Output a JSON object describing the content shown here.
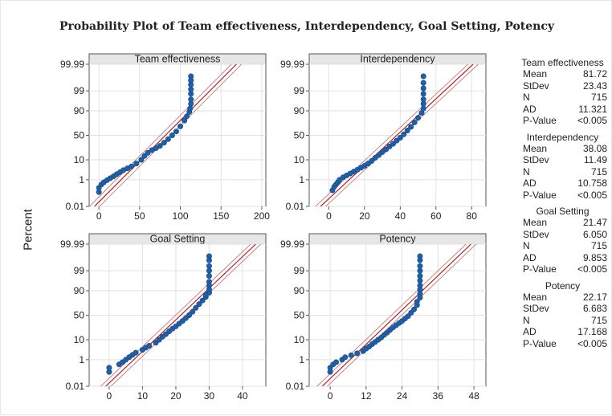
{
  "title": "Probability Plot of Team effectiveness, Interdependency, Goal Setting, Potency",
  "y_axis_label": "Percent",
  "colors": {
    "points": "#1f5fa8",
    "fit_line": "#b22222",
    "ci_band": "#c87a7a",
    "grid": "#e2e2e2",
    "panel_header": "#e6e6e6"
  },
  "chart_data": [
    {
      "type": "scatter",
      "title": "Team effectiveness",
      "y_scale": "normal-probability",
      "y_ticks": [
        "99.99",
        "99",
        "90",
        "50",
        "10",
        "1",
        "0.01"
      ],
      "y_tick_values": [
        99.99,
        99,
        90,
        50,
        10,
        1,
        0.01
      ],
      "x_ticks": [
        "0",
        "50",
        "100",
        "150",
        "200"
      ],
      "x_tick_values": [
        0,
        50,
        100,
        150,
        200
      ],
      "xlim": [
        -12,
        205
      ],
      "fit": {
        "mean": 81.72,
        "sd": 23.43
      },
      "points": [
        [
          0,
          0.15
        ],
        [
          0,
          0.3
        ],
        [
          3,
          0.5
        ],
        [
          6,
          0.7
        ],
        [
          10,
          0.95
        ],
        [
          14,
          1.25
        ],
        [
          18,
          1.6
        ],
        [
          22,
          2.1
        ],
        [
          26,
          2.7
        ],
        [
          30,
          3.4
        ],
        [
          35,
          4.2
        ],
        [
          40,
          5.2
        ],
        [
          46,
          7
        ],
        [
          52,
          10
        ],
        [
          56,
          14
        ],
        [
          60,
          18
        ],
        [
          65,
          22
        ],
        [
          70,
          25
        ],
        [
          75,
          29
        ],
        [
          80,
          35
        ],
        [
          85,
          42
        ],
        [
          90,
          50
        ],
        [
          95,
          58
        ],
        [
          100,
          68
        ],
        [
          105,
          78
        ],
        [
          108,
          84
        ],
        [
          111,
          89
        ],
        [
          112,
          92
        ],
        [
          113,
          95
        ],
        [
          113,
          97
        ],
        [
          113,
          98.5
        ],
        [
          113,
          99.2
        ],
        [
          113,
          99.6
        ],
        [
          113,
          99.8
        ],
        [
          113,
          99.9
        ]
      ],
      "stats": {
        "title": "Team effectiveness",
        "Mean": "81.72",
        "StDev": "23.43",
        "N": "715",
        "AD": "11.321",
        "P-Value": "<0.005"
      }
    },
    {
      "type": "scatter",
      "title": "Interdependency",
      "y_scale": "normal-probability",
      "y_ticks": [
        "99.99",
        "99",
        "90",
        "50",
        "10",
        "1",
        "0.01"
      ],
      "y_tick_values": [
        99.99,
        99,
        90,
        50,
        10,
        1,
        0.01
      ],
      "x_ticks": [
        "0",
        "20",
        "40",
        "60",
        "80"
      ],
      "x_tick_values": [
        0,
        20,
        40,
        60,
        80
      ],
      "xlim": [
        -11,
        88
      ],
      "fit": {
        "mean": 38.08,
        "sd": 11.49
      },
      "points": [
        [
          2,
          0.2
        ],
        [
          3,
          0.35
        ],
        [
          4,
          0.5
        ],
        [
          5,
          0.7
        ],
        [
          6,
          1
        ],
        [
          8,
          1.4
        ],
        [
          10,
          1.8
        ],
        [
          12,
          2.3
        ],
        [
          14,
          2.9
        ],
        [
          16,
          3.6
        ],
        [
          18,
          4.5
        ],
        [
          20,
          5.5
        ],
        [
          22,
          7
        ],
        [
          24,
          9
        ],
        [
          26,
          12
        ],
        [
          28,
          15
        ],
        [
          30,
          19
        ],
        [
          32,
          23
        ],
        [
          34,
          28
        ],
        [
          36,
          33
        ],
        [
          38,
          39
        ],
        [
          40,
          45
        ],
        [
          42,
          52
        ],
        [
          44,
          60
        ],
        [
          46,
          67
        ],
        [
          48,
          75
        ],
        [
          50,
          82
        ],
        [
          52,
          88
        ],
        [
          53,
          92
        ],
        [
          53,
          95
        ],
        [
          53,
          97
        ],
        [
          53,
          98.5
        ],
        [
          53,
          99.3
        ],
        [
          53,
          99.7
        ],
        [
          53,
          99.9
        ]
      ],
      "stats": {
        "title": "Interdependency",
        "Mean": "38.08",
        "StDev": "11.49",
        "N": "715",
        "AD": "10.758",
        "P-Value": "<0.005"
      }
    },
    {
      "type": "scatter",
      "title": "Goal Setting",
      "y_scale": "normal-probability",
      "y_ticks": [
        "99.99",
        "99",
        "90",
        "50",
        "10",
        "1",
        "0.01"
      ],
      "y_tick_values": [
        99.99,
        99,
        90,
        50,
        10,
        1,
        0.01
      ],
      "x_ticks": [
        "0",
        "10",
        "20",
        "30",
        "40"
      ],
      "x_tick_values": [
        0,
        10,
        20,
        30,
        40
      ],
      "xlim": [
        -6,
        47
      ],
      "fit": {
        "mean": 21.47,
        "sd": 6.05
      },
      "points": [
        [
          0,
          0.15
        ],
        [
          0,
          0.3
        ],
        [
          3,
          0.5
        ],
        [
          4,
          0.7
        ],
        [
          5,
          1
        ],
        [
          6,
          1.4
        ],
        [
          7,
          1.9
        ],
        [
          8,
          2.5
        ],
        [
          10,
          3.5
        ],
        [
          11,
          4.5
        ],
        [
          12,
          5.5
        ],
        [
          14,
          7.5
        ],
        [
          15,
          10
        ],
        [
          16,
          13
        ],
        [
          17,
          16
        ],
        [
          18,
          20
        ],
        [
          19,
          24
        ],
        [
          20,
          28
        ],
        [
          21,
          33
        ],
        [
          22,
          38
        ],
        [
          23,
          44
        ],
        [
          24,
          50
        ],
        [
          25,
          57
        ],
        [
          26,
          65
        ],
        [
          27,
          72
        ],
        [
          28,
          78
        ],
        [
          29,
          83
        ],
        [
          29,
          86
        ],
        [
          30,
          88
        ],
        [
          30,
          91
        ],
        [
          30,
          94
        ],
        [
          30,
          96
        ],
        [
          30,
          98
        ],
        [
          30,
          99
        ],
        [
          30,
          99.5
        ],
        [
          30,
          99.8
        ],
        [
          30,
          99.9
        ]
      ],
      "stats": {
        "title": "Goal Setting",
        "Mean": "21.47",
        "StDev": "6.050",
        "N": "715",
        "AD": "9.853",
        "P-Value": "<0.005"
      }
    },
    {
      "type": "scatter",
      "title": "Potency",
      "y_scale": "normal-probability",
      "y_ticks": [
        "99.99",
        "99",
        "90",
        "50",
        "10",
        "1",
        "0.01"
      ],
      "y_tick_values": [
        99.99,
        99,
        90,
        50,
        10,
        1,
        0.01
      ],
      "x_ticks": [
        "0",
        "12",
        "24",
        "36",
        "48"
      ],
      "x_tick_values": [
        0,
        12,
        24,
        36,
        48
      ],
      "xlim": [
        -7,
        52
      ],
      "fit": {
        "mean": 22.17,
        "sd": 6.683
      },
      "points": [
        [
          0,
          0.15
        ],
        [
          0,
          0.3
        ],
        [
          1,
          0.5
        ],
        [
          2,
          0.7
        ],
        [
          4,
          1
        ],
        [
          5,
          1.4
        ],
        [
          7,
          1.8
        ],
        [
          9,
          2.3
        ],
        [
          11,
          3
        ],
        [
          12,
          4
        ],
        [
          13,
          5
        ],
        [
          14,
          6.5
        ],
        [
          15,
          8
        ],
        [
          16,
          10
        ],
        [
          17,
          12
        ],
        [
          18,
          15
        ],
        [
          19,
          18
        ],
        [
          20,
          22
        ],
        [
          21,
          26
        ],
        [
          22,
          30
        ],
        [
          23,
          34
        ],
        [
          24,
          38
        ],
        [
          25,
          43
        ],
        [
          26,
          48
        ],
        [
          27,
          55
        ],
        [
          28,
          62
        ],
        [
          29,
          70
        ],
        [
          29,
          76
        ],
        [
          30,
          82
        ],
        [
          30,
          87
        ],
        [
          30,
          91
        ],
        [
          30,
          94
        ],
        [
          30,
          96.5
        ],
        [
          30,
          98
        ],
        [
          30,
          99
        ],
        [
          30,
          99.5
        ],
        [
          30,
          99.8
        ],
        [
          30,
          99.9
        ]
      ],
      "stats": {
        "title": "Potency",
        "Mean": "22.17",
        "StDev": "6.683",
        "N": "715",
        "AD": "17.168",
        "P-Value": "<0.005"
      }
    }
  ]
}
